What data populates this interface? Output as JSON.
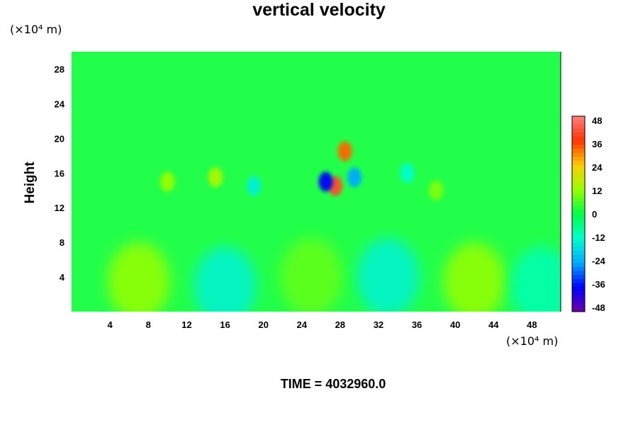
{
  "chart_data": {
    "type": "heatmap",
    "title": "vertical velocity",
    "xlabel": "",
    "ylabel": "Height",
    "x_unit": "(×10⁴ m)",
    "y_unit": "(×10⁴ m)",
    "xlim": [
      0,
      51
    ],
    "ylim": [
      0,
      30
    ],
    "xticks": [
      4,
      8,
      12,
      16,
      20,
      24,
      28,
      32,
      36,
      40,
      44,
      48
    ],
    "yticks": [
      4,
      8,
      12,
      16,
      20,
      24,
      28
    ],
    "colorbar": {
      "range": [
        -48,
        48
      ],
      "ticks": [
        48,
        36,
        24,
        12,
        0,
        -12,
        -24,
        -36,
        -48
      ],
      "placement": "right"
    },
    "colormap": [
      "#6a00a8",
      "#0000ff",
      "#00aaff",
      "#00ffcc",
      "#00ff44",
      "#99ff00",
      "#ffcc00",
      "#ff3300",
      "#ff8080"
    ],
    "features": [
      {
        "kind": "cell",
        "x": 7,
        "y": 3.5,
        "value": 12
      },
      {
        "kind": "cell",
        "x": 16,
        "y": 3,
        "value": -14
      },
      {
        "kind": "cell",
        "x": 25,
        "y": 4,
        "value": 8
      },
      {
        "kind": "cell",
        "x": 33,
        "y": 4,
        "value": -14
      },
      {
        "kind": "cell",
        "x": 42,
        "y": 3.5,
        "value": 12
      },
      {
        "kind": "cell",
        "x": 49,
        "y": 3,
        "value": -10
      },
      {
        "kind": "updraft",
        "x": 28.5,
        "y": 18.5,
        "value": 32
      },
      {
        "kind": "updraft",
        "x": 27.5,
        "y": 14.5,
        "value": 40
      },
      {
        "kind": "downdraft",
        "x": 26.5,
        "y": 15,
        "value": -36
      },
      {
        "kind": "downdraft",
        "x": 29.5,
        "y": 15.5,
        "value": -24
      },
      {
        "kind": "updraft",
        "x": 15,
        "y": 15.5,
        "value": 14
      },
      {
        "kind": "downdraft",
        "x": 19,
        "y": 14.5,
        "value": -14
      },
      {
        "kind": "updraft",
        "x": 10,
        "y": 15,
        "value": 12
      },
      {
        "kind": "downdraft",
        "x": 35,
        "y": 16,
        "value": -12
      },
      {
        "kind": "updraft",
        "x": 38,
        "y": 14,
        "value": 10
      }
    ]
  },
  "footer": {
    "time_label": "TIME = 4032960.0"
  }
}
